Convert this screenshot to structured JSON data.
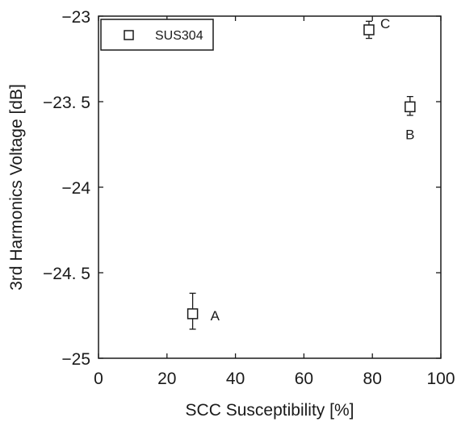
{
  "chart_data": {
    "type": "scatter",
    "title": "",
    "xlabel": "SCC Susceptibility [%]",
    "ylabel": "3rd Harmonics Voltage [dB]",
    "xlim": [
      0,
      100
    ],
    "ylim": [
      -25,
      -23
    ],
    "xticks": [
      0,
      20,
      40,
      60,
      80,
      100
    ],
    "xtick_labels": [
      "0",
      "20",
      "40",
      "60",
      "80",
      "100"
    ],
    "yticks": [
      -25,
      -24.5,
      -24,
      -23.5,
      -23
    ],
    "ytick_labels": [
      "−25",
      "−24. 5",
      "−24",
      "−23. 5",
      "−23"
    ],
    "grid": false,
    "legend_position": "top-left",
    "series": [
      {
        "name": "SUS304",
        "marker": "open-square",
        "color": "#1a1a1a",
        "points": [
          {
            "label": "A",
            "x": 27.5,
            "y": -24.74,
            "ylow": -24.83,
            "yhigh": -24.62
          },
          {
            "label": "B",
            "x": 91,
            "y": -23.53,
            "ylow": -23.58,
            "yhigh": -23.47
          },
          {
            "label": "C",
            "x": 79,
            "y": -23.08,
            "ylow": -23.13,
            "yhigh": -23.03
          }
        ]
      }
    ]
  }
}
